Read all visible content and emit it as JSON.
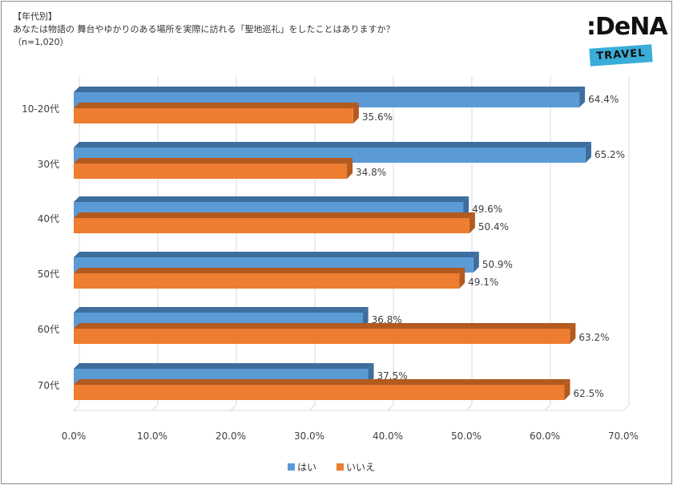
{
  "header": {
    "line1": "【年代別】",
    "line2": "あなたは物語の 舞台やゆかりのある場所を実際に訪れる「聖地巡礼」をしたことはありますか？",
    "line3": "（n=1,020）"
  },
  "logo": {
    "word": ":DeNA",
    "tag": "TRAVEL"
  },
  "colors": {
    "yes": "#5b9bd5",
    "yes_dark": "#3d6e9e",
    "no": "#ed7d31",
    "no_dark": "#b35a1f",
    "grid": "#d9d9d9"
  },
  "chart_data": {
    "type": "bar",
    "orientation": "horizontal",
    "categories": [
      "10-20代",
      "30代",
      "40代",
      "50代",
      "60代",
      "70代"
    ],
    "series": [
      {
        "name": "はい",
        "values": [
          64.4,
          65.2,
          49.6,
          50.9,
          36.8,
          37.5
        ],
        "labels": [
          "64.4%",
          "65.2%",
          "49.6%",
          "50.9%",
          "36.8%",
          "37.5%"
        ]
      },
      {
        "name": "いいえ",
        "values": [
          35.6,
          34.8,
          50.4,
          49.1,
          63.2,
          62.5
        ],
        "labels": [
          "35.6%",
          "34.8%",
          "50.4%",
          "49.1%",
          "63.2%",
          "62.5%"
        ]
      }
    ],
    "xlim": [
      0,
      70
    ],
    "xticks": [
      "0.0%",
      "10.0%",
      "20.0%",
      "30.0%",
      "40.0%",
      "50.0%",
      "60.0%",
      "70.0%"
    ],
    "grid": true,
    "legend_position": "bottom"
  }
}
